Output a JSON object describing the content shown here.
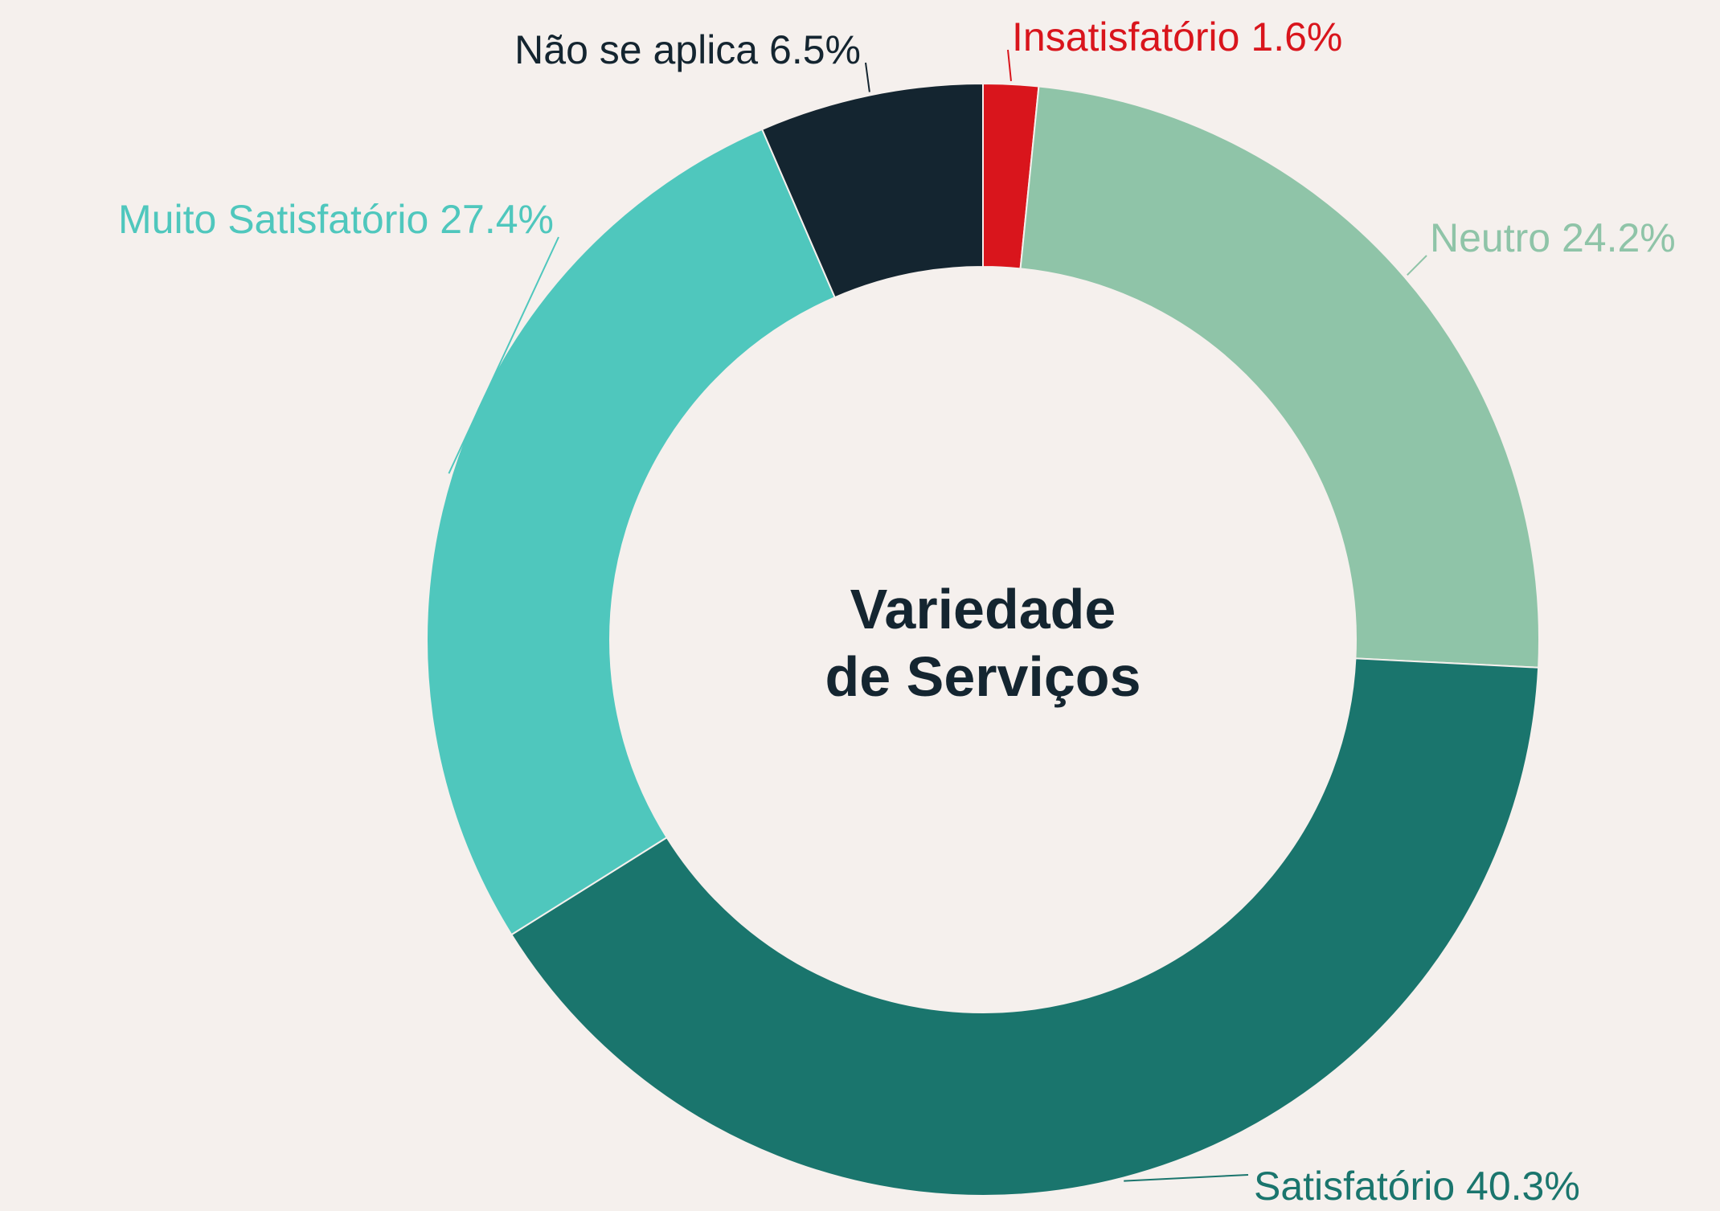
{
  "chart_data": {
    "type": "donut",
    "title": "Variedade de Serviços",
    "categories": [
      "Insatisfatório",
      "Neutro",
      "Satisfatório",
      "Muito Satisfatório",
      "Não se aplica"
    ],
    "values": [
      1.6,
      24.2,
      40.3,
      27.4,
      6.5
    ],
    "value_labels": [
      "1.6%",
      "24.2%",
      "40.3%",
      "27.4%",
      "6.5%"
    ],
    "colors": [
      "#d9151c",
      "#8fc4a8",
      "#1a756d",
      "#4fc7bd",
      "#142530"
    ]
  }
}
